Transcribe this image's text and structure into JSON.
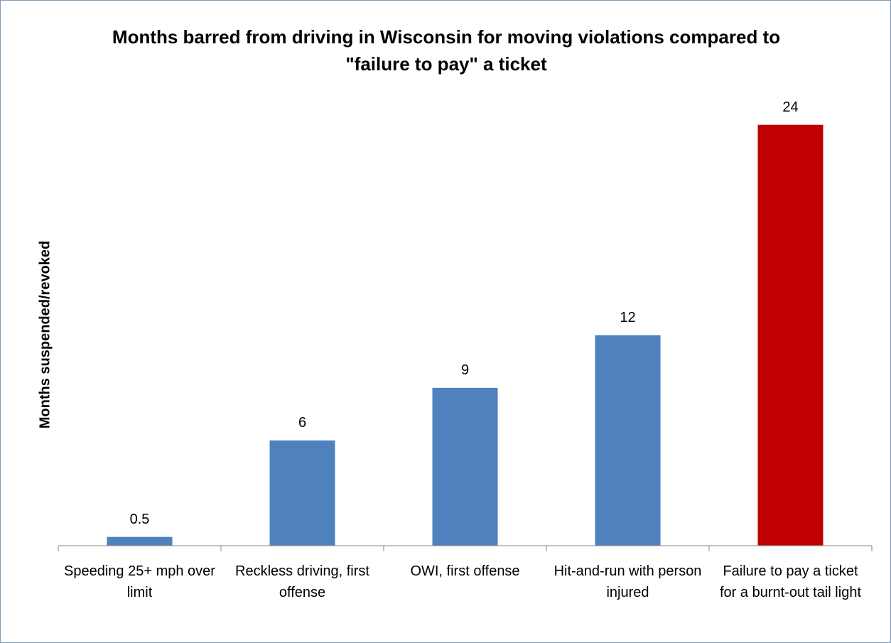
{
  "chart_data": {
    "type": "bar",
    "title": "Months barred from driving in Wisconsin for moving violations compared to \"failure to pay\" a ticket",
    "y_label": "Months suspended/revoked",
    "categories": [
      "Speeding 25+ mph over limit",
      "Reckless driving, first offense",
      "OWI, first offense",
      "Hit-and-run with person injured",
      "Failure to pay a ticket for a burnt-out tail light"
    ],
    "values": [
      0.5,
      6,
      9,
      12,
      24
    ],
    "colors": [
      "#4f81bd",
      "#4f81bd",
      "#4f81bd",
      "#4f81bd",
      "#c00000"
    ],
    "ylim": [
      0,
      25
    ]
  }
}
